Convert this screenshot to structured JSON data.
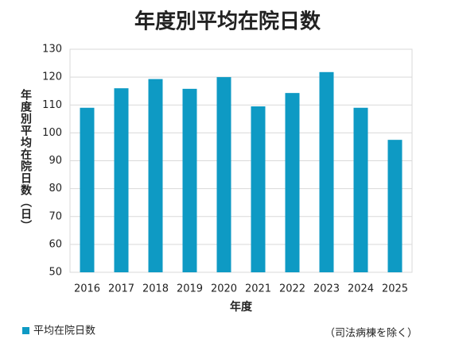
{
  "chart_data": {
    "type": "bar",
    "title": "年度別平均在院日数",
    "x_label": "年度",
    "y_label": "年度別平均在院日数（日）",
    "note": "（司法病棟を除く）",
    "categories": [
      "2016",
      "2017",
      "2018",
      "2019",
      "2020",
      "2021",
      "2022",
      "2023",
      "2024",
      "2025"
    ],
    "series": [
      {
        "name": "平均在院日数",
        "color": "#0e9ac4",
        "values": [
          109,
          116,
          119.3,
          115.8,
          120,
          109.5,
          114.3,
          121.8,
          109,
          97.5
        ]
      }
    ],
    "ylim": [
      50,
      130
    ],
    "yticks": [
      50,
      60,
      70,
      80,
      90,
      100,
      110,
      120,
      130
    ],
    "grid": true,
    "legend": "bottom-left"
  }
}
